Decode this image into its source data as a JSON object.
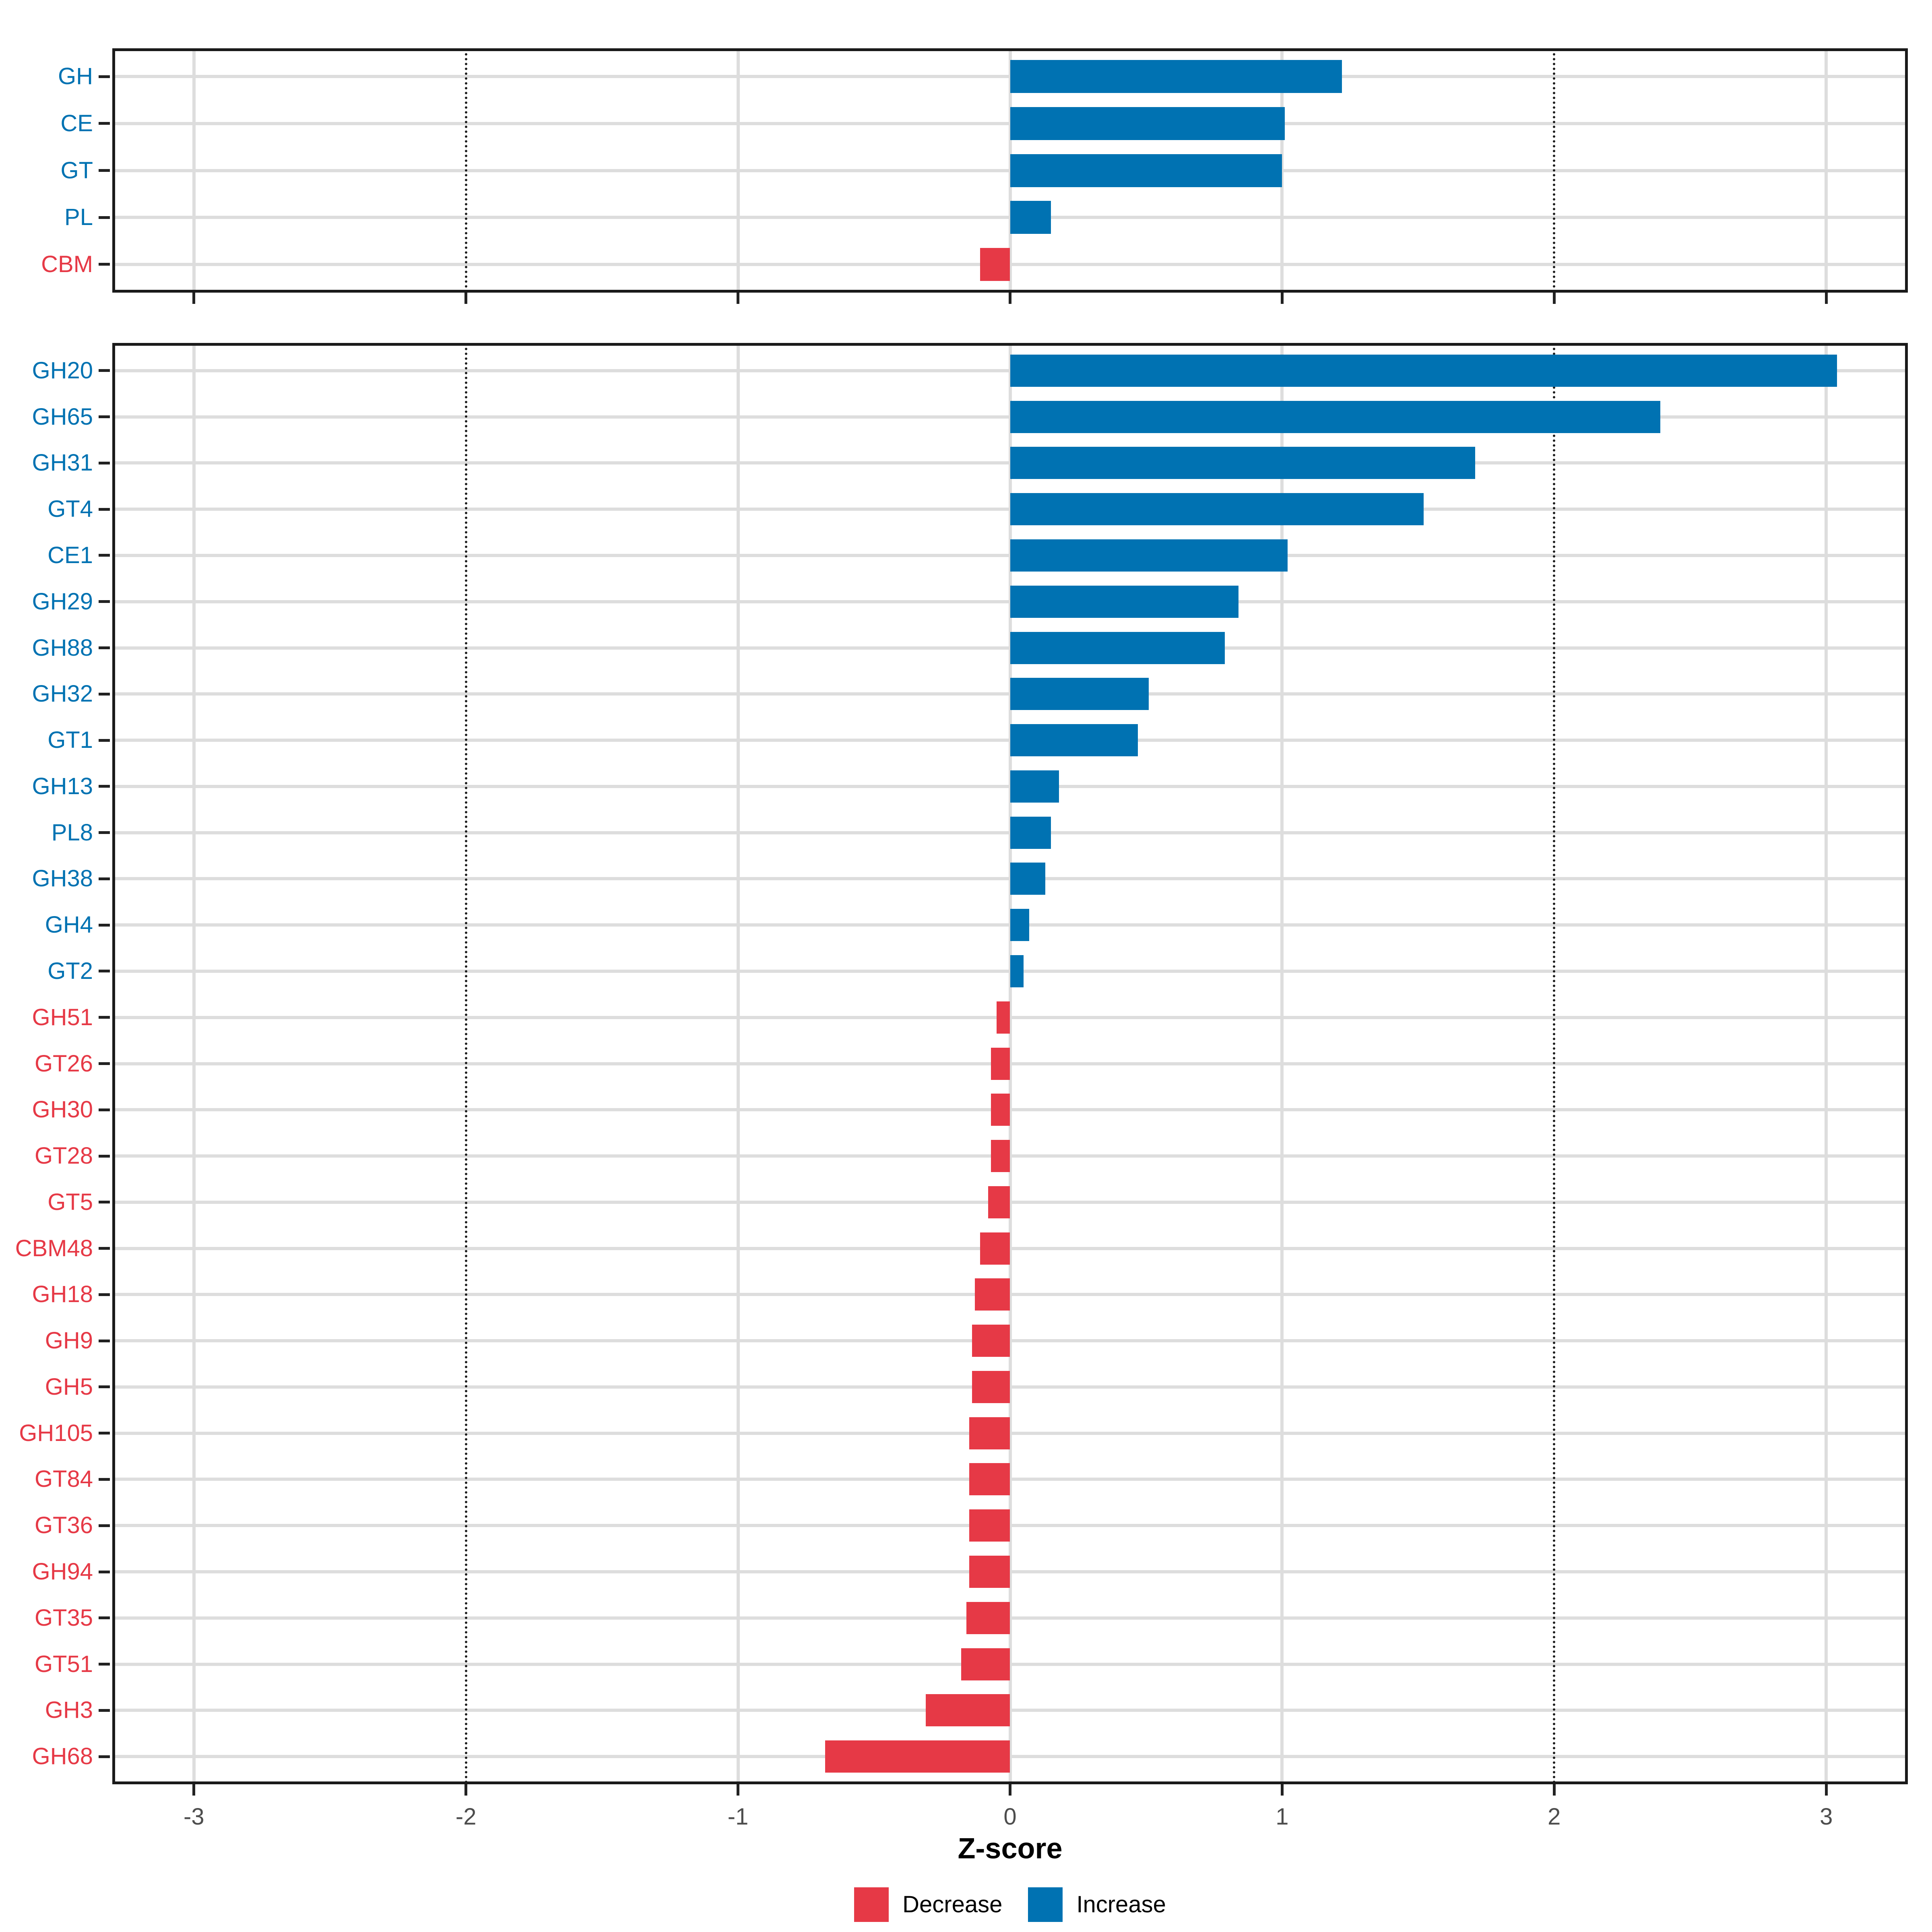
{
  "chart_data": {
    "type": "bar",
    "orientation": "horizontal",
    "xlabel": "Z-score",
    "xlim": [
      -3.3,
      3.3
    ],
    "x_ticks": [
      -3,
      -2,
      -1,
      0,
      1,
      2,
      3
    ],
    "threshold_lines": [
      -2,
      2
    ],
    "grid": true,
    "legend_position": "bottom",
    "legend": [
      {
        "label": "Decrease",
        "color": "#E63946",
        "direction": "decrease"
      },
      {
        "label": "Increase",
        "color": "#0072B2",
        "direction": "increase"
      }
    ],
    "colors": {
      "increase": "#0072B2",
      "decrease": "#E63946",
      "gridline": "#DDDDDD",
      "panel_border": "#1A1A1A",
      "tick_label": "#4D4D4D"
    },
    "panels": [
      {
        "id": "classes",
        "categories": [
          "GH",
          "CE",
          "GT",
          "PL",
          "CBM"
        ],
        "values": [
          1.22,
          1.01,
          1.0,
          0.15,
          -0.11
        ]
      },
      {
        "id": "families",
        "categories": [
          "GH20",
          "GH65",
          "GH31",
          "GT4",
          "CE1",
          "GH29",
          "GH88",
          "GH32",
          "GT1",
          "GH13",
          "PL8",
          "GH38",
          "GH4",
          "GT2",
          "GH51",
          "GT26",
          "GH30",
          "GT28",
          "GT5",
          "CBM48",
          "GH18",
          "GH9",
          "GH5",
          "GH105",
          "GT84",
          "GT36",
          "GH94",
          "GT35",
          "GT51",
          "GH3",
          "GH68"
        ],
        "values": [
          3.04,
          2.39,
          1.71,
          1.52,
          1.02,
          0.84,
          0.79,
          0.51,
          0.47,
          0.18,
          0.15,
          0.13,
          0.07,
          0.05,
          -0.05,
          -0.07,
          -0.07,
          -0.07,
          -0.08,
          -0.11,
          -0.13,
          -0.14,
          -0.14,
          -0.15,
          -0.15,
          -0.15,
          -0.15,
          -0.16,
          -0.18,
          -0.31,
          -0.68
        ]
      }
    ]
  }
}
